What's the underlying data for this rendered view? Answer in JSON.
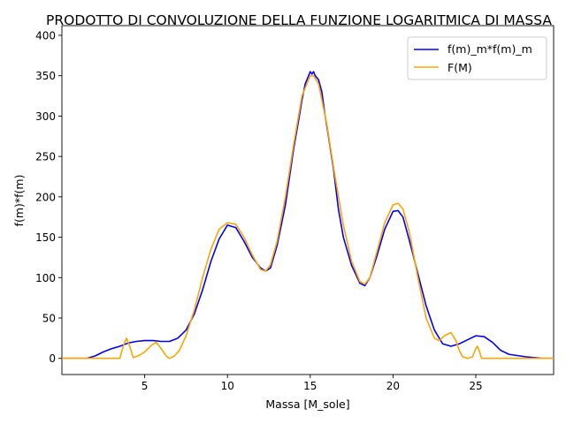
{
  "chart_data": {
    "type": "line",
    "title": "PRODOTTO DI CONVOLUZIONE DELLA FUNZIONE LOGARITMICA DI MASSA",
    "xlabel": "Massa [M_sole]",
    "ylabel": "f(m)*f(m)",
    "xlim": [
      0.0,
      29.7
    ],
    "ylim": [
      -20,
      412
    ],
    "xticks": [
      5,
      10,
      15,
      20,
      25
    ],
    "yticks": [
      0,
      50,
      100,
      150,
      200,
      250,
      300,
      350,
      400
    ],
    "grid": false,
    "legend_position": "top-right",
    "series": [
      {
        "name": "f(m)_m*f(m)_m",
        "color": "#0000ff",
        "x": [
          0.0,
          1.5,
          2.0,
          2.5,
          3.0,
          3.5,
          4.0,
          4.5,
          5.0,
          5.5,
          6.0,
          6.5,
          7.0,
          7.5,
          8.0,
          8.5,
          9.0,
          9.5,
          10.0,
          10.5,
          11.0,
          11.5,
          12.0,
          12.3,
          12.6,
          13.0,
          13.5,
          14.0,
          14.3,
          14.5,
          14.7,
          14.9,
          15.0,
          15.1,
          15.2,
          15.3,
          15.5,
          15.7,
          15.9,
          16.1,
          16.4,
          16.7,
          17.0,
          17.5,
          18.0,
          18.3,
          18.6,
          19.0,
          19.5,
          20.0,
          20.3,
          20.6,
          21.0,
          21.5,
          22.0,
          22.5,
          23.0,
          23.5,
          24.0,
          24.5,
          25.0,
          25.5,
          26.0,
          26.5,
          27.0,
          28.0,
          29.0,
          29.7
        ],
        "y": [
          0,
          0,
          3,
          8,
          12,
          15,
          19,
          21,
          22,
          22,
          21,
          21,
          25,
          35,
          55,
          85,
          120,
          148,
          165,
          162,
          145,
          125,
          112,
          108,
          112,
          140,
          190,
          260,
          295,
          320,
          340,
          350,
          355,
          352,
          355,
          350,
          345,
          330,
          300,
          275,
          235,
          185,
          150,
          115,
          93,
          90,
          100,
          125,
          160,
          182,
          183,
          175,
          145,
          105,
          65,
          35,
          18,
          15,
          18,
          23,
          28,
          27,
          20,
          10,
          5,
          2,
          0,
          0
        ]
      },
      {
        "name": "F(M)",
        "color": "#ffa500",
        "x": [
          0.0,
          1.5,
          2.5,
          3.2,
          3.5,
          3.7,
          3.9,
          4.1,
          4.3,
          4.6,
          5.0,
          5.4,
          5.7,
          6.0,
          6.3,
          6.5,
          6.8,
          7.1,
          7.5,
          8.0,
          8.5,
          9.0,
          9.5,
          10.0,
          10.5,
          11.0,
          11.5,
          12.0,
          12.3,
          12.6,
          13.0,
          13.5,
          14.0,
          14.5,
          15.0,
          15.2,
          15.5,
          16.0,
          16.5,
          17.0,
          17.5,
          18.0,
          18.3,
          18.6,
          19.0,
          19.5,
          20.0,
          20.3,
          20.6,
          21.0,
          21.5,
          22.0,
          22.5,
          22.8,
          23.1,
          23.5,
          23.8,
          24.0,
          24.2,
          24.5,
          24.8,
          25.0,
          25.1,
          25.2,
          25.35,
          26.0,
          27.0,
          28.0,
          29.7
        ],
        "y": [
          0,
          0,
          0,
          0,
          0,
          15,
          25,
          15,
          1,
          3,
          8,
          16,
          20,
          12,
          3,
          0,
          3,
          10,
          28,
          60,
          100,
          135,
          160,
          168,
          166,
          150,
          128,
          110,
          108,
          116,
          145,
          200,
          265,
          325,
          350,
          350,
          340,
          290,
          225,
          165,
          120,
          95,
          92,
          100,
          130,
          168,
          190,
          192,
          185,
          155,
          100,
          50,
          25,
          22,
          28,
          32,
          22,
          10,
          2,
          0,
          2,
          12,
          15,
          10,
          0,
          0,
          0,
          0,
          0
        ]
      }
    ]
  }
}
